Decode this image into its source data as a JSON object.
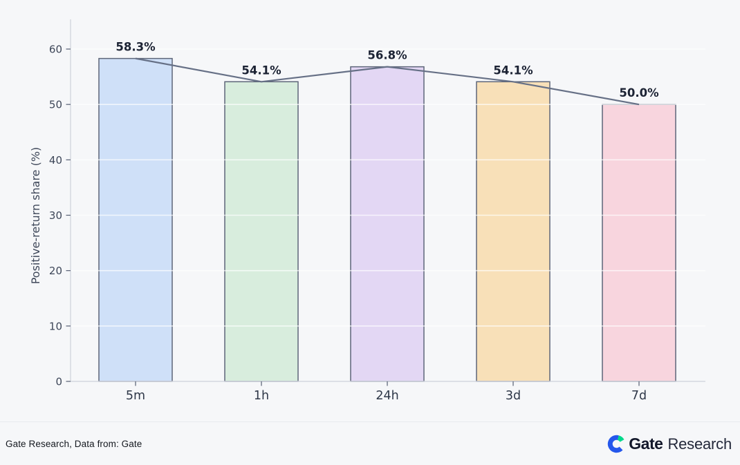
{
  "chart_data": {
    "type": "bar",
    "overlay": "line",
    "categories": [
      "5m",
      "1h",
      "24h",
      "3d",
      "7d"
    ],
    "values": [
      58.3,
      54.1,
      56.8,
      54.1,
      50.0
    ],
    "value_labels": [
      "58.3%",
      "54.1%",
      "56.8%",
      "54.1%",
      "50.0%"
    ],
    "title": "",
    "xlabel": "",
    "ylabel": "Positive-return share (%)",
    "ylim": [
      0,
      60
    ],
    "yticks": [
      0,
      10,
      20,
      30,
      40,
      50,
      60
    ],
    "grid": "horizontal",
    "legend": "none",
    "bar_fill_colors": [
      "#cfe0f8",
      "#d8eddd",
      "#e3d7f4",
      "#f8e0b8",
      "#f8d5de"
    ],
    "bar_edge_color": "#5d6578",
    "line_color": "#667086",
    "value_label_color": "#1c2334",
    "tick_label_color": "#3e4759",
    "x_tick_label_color": "#2e3748",
    "axis_color": "#d3d7df",
    "tick_mark_color": "#555e72",
    "gridline_color": "rgba(255,255,255,0.7)"
  },
  "footer": {
    "source_text": "Gate Research, Data from: Gate",
    "logo_bold": "Gate",
    "logo_regular": "Research",
    "logo_blue": "#2557eb",
    "logo_green": "#00d98b"
  },
  "colors": {
    "background": "#f6f7f9",
    "divider": "#e8eaee"
  }
}
